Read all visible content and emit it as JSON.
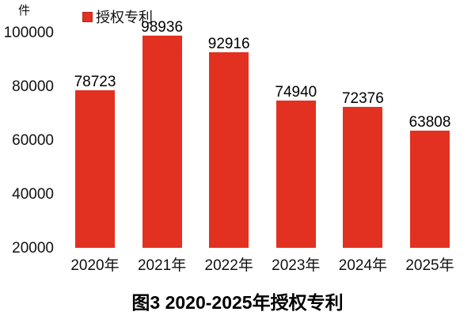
{
  "chart_data": {
    "type": "bar",
    "title": "图3 2020-2025年授权专利",
    "unit_label": "件",
    "legend": [
      {
        "label": "授权专利",
        "color": "#e23120"
      }
    ],
    "legend_position": "top",
    "categories": [
      "2020年",
      "2021年",
      "2022年",
      "2023年",
      "2024年",
      "2025年"
    ],
    "values": [
      78723,
      98936,
      92916,
      74940,
      72376,
      63808
    ],
    "series": [
      {
        "name": "授权专利",
        "values": [
          78723,
          98936,
          92916,
          74940,
          72376,
          63808
        ]
      }
    ],
    "y_ticks": [
      100000,
      80000,
      60000,
      40000,
      20000
    ],
    "ylim": [
      20000,
      104000
    ],
    "xlabel": "",
    "ylabel": "件",
    "grid": false,
    "bar_color": "#e23120"
  }
}
